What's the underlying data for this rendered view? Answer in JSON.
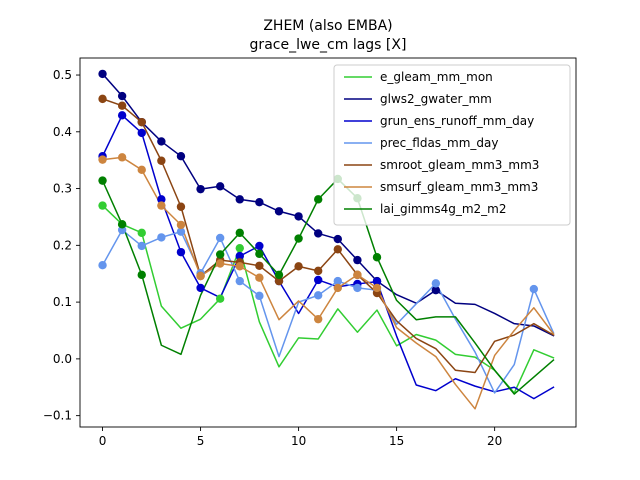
{
  "chart_data": {
    "type": "line",
    "title": "ZHEM (also EMBA)",
    "subtitle": "grace_lwe_cm lags [X]",
    "xlim": [
      -1.15,
      24.15
    ],
    "ylim": [
      -0.12,
      0.53
    ],
    "xticks": [
      0,
      5,
      10,
      15,
      20
    ],
    "yticks": [
      -0.1,
      0.0,
      0.1,
      0.2,
      0.3,
      0.4,
      0.5
    ],
    "ytick_labels": [
      "−0.1",
      "0.0",
      "0.1",
      "0.2",
      "0.3",
      "0.4",
      "0.5"
    ],
    "grid": false,
    "legend_position": "top-right",
    "x": [
      0,
      1,
      2,
      3,
      4,
      5,
      6,
      7,
      8,
      9,
      10,
      11,
      12,
      13,
      14,
      15,
      16,
      17,
      18,
      19,
      20,
      21,
      22,
      23
    ],
    "series": [
      {
        "name": "e_gleam_mm_mon",
        "color": "#32cd32",
        "values": [
          0.27,
          0.237,
          0.222,
          0.093,
          0.054,
          0.07,
          0.106,
          0.195,
          0.065,
          -0.014,
          0.037,
          0.035,
          0.088,
          0.047,
          0.086,
          0.023,
          0.043,
          0.033,
          0.008,
          0.003,
          -0.02,
          -0.06,
          0.016,
          0.002
        ],
        "markers": [
          0,
          1,
          2,
          6,
          7
        ]
      },
      {
        "name": "glws2_gwater_mm",
        "color": "#000080",
        "values": [
          0.502,
          0.463,
          0.417,
          0.383,
          0.357,
          0.299,
          0.304,
          0.281,
          0.276,
          0.26,
          0.251,
          0.221,
          0.211,
          0.174,
          0.137,
          0.113,
          0.098,
          0.121,
          0.098,
          0.096,
          0.08,
          0.062,
          0.058,
          0.041
        ],
        "markers": [
          0,
          1,
          2,
          3,
          4,
          5,
          6,
          7,
          8,
          9,
          10,
          11,
          12,
          13,
          14,
          17
        ]
      },
      {
        "name": "grun_ens_runoff_mm_day",
        "color": "#0000cd",
        "values": [
          0.357,
          0.429,
          0.398,
          0.281,
          0.188,
          0.125,
          0.108,
          0.181,
          0.199,
          0.137,
          0.08,
          0.139,
          0.127,
          0.132,
          0.136,
          0.04,
          -0.046,
          -0.056,
          -0.035,
          -0.048,
          -0.058,
          -0.05,
          -0.07,
          -0.05
        ],
        "markers": [
          0,
          1,
          2,
          3,
          4,
          5,
          7,
          8,
          9,
          11,
          13,
          14
        ]
      },
      {
        "name": "prec_fldas_mm_day",
        "color": "#6495ed",
        "values": [
          0.165,
          0.227,
          0.199,
          0.214,
          0.224,
          0.151,
          0.213,
          0.137,
          0.111,
          0.004,
          0.1,
          0.112,
          0.137,
          0.125,
          0.121,
          0.061,
          0.097,
          0.133,
          0.07,
          0.012,
          -0.06,
          -0.01,
          0.123,
          0.046
        ],
        "markers": [
          0,
          1,
          2,
          3,
          4,
          5,
          6,
          7,
          8,
          11,
          12,
          13,
          14,
          17,
          22
        ]
      },
      {
        "name": "smroot_gleam_mm3_mm3",
        "color": "#8b4513",
        "values": [
          0.458,
          0.446,
          0.417,
          0.349,
          0.268,
          0.146,
          0.174,
          0.17,
          0.164,
          0.137,
          0.163,
          0.155,
          0.193,
          0.148,
          0.116,
          0.067,
          0.036,
          0.018,
          -0.02,
          -0.024,
          0.031,
          0.042,
          0.062,
          0.042
        ],
        "markers": [
          0,
          1,
          2,
          3,
          4,
          5,
          6,
          7,
          8,
          9,
          10,
          11,
          12,
          13,
          14
        ]
      },
      {
        "name": "smsurf_gleam_mm3_mm3",
        "color": "#cd853f",
        "values": [
          0.351,
          0.355,
          0.333,
          0.27,
          0.236,
          0.146,
          0.168,
          0.163,
          0.143,
          0.069,
          0.102,
          0.07,
          0.125,
          0.148,
          0.125,
          0.055,
          0.028,
          0.004,
          -0.045,
          -0.088,
          0.006,
          0.05,
          0.09,
          0.044
        ],
        "markers": [
          0,
          1,
          2,
          3,
          4,
          5,
          6,
          7,
          8,
          11,
          12,
          13,
          14
        ]
      },
      {
        "name": "lai_gimms4g_m2_m2",
        "color": "#008000",
        "values": [
          0.314,
          0.237,
          0.148,
          0.024,
          0.008,
          0.112,
          0.184,
          0.222,
          0.185,
          0.148,
          0.212,
          0.281,
          0.317,
          0.283,
          0.179,
          0.103,
          0.069,
          0.074,
          0.074,
          0.028,
          -0.02,
          -0.062,
          -0.032,
          -0.002
        ],
        "markers": [
          0,
          1,
          2,
          6,
          7,
          8,
          9,
          10,
          11,
          12,
          13,
          14
        ]
      }
    ]
  }
}
